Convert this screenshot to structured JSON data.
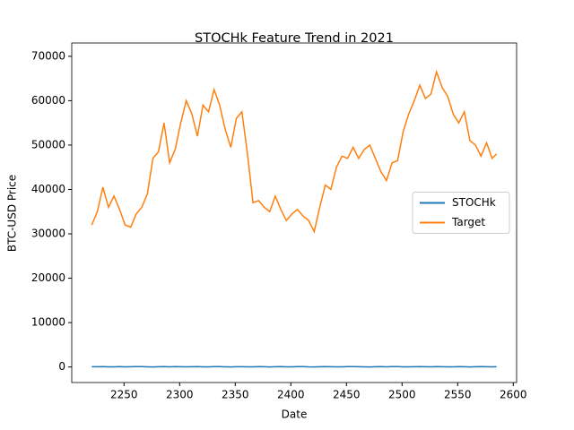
{
  "chart_data": {
    "type": "line",
    "title": "STOCHk Feature Trend in 2021",
    "x_label": "Date",
    "y_label": "BTC-USD Price",
    "x": [
      2221,
      2226,
      2231,
      2236,
      2241,
      2246,
      2251,
      2256,
      2261,
      2266,
      2271,
      2276,
      2281,
      2286,
      2291,
      2296,
      2301,
      2306,
      2311,
      2316,
      2321,
      2326,
      2331,
      2336,
      2341,
      2346,
      2351,
      2356,
      2361,
      2366,
      2371,
      2376,
      2381,
      2386,
      2391,
      2396,
      2401,
      2406,
      2411,
      2416,
      2421,
      2426,
      2431,
      2436,
      2441,
      2446,
      2451,
      2456,
      2461,
      2466,
      2471,
      2476,
      2481,
      2486,
      2491,
      2496,
      2501,
      2506,
      2511,
      2516,
      2521,
      2526,
      2531,
      2536,
      2541,
      2546,
      2551,
      2556,
      2561,
      2566,
      2571,
      2576,
      2581,
      2585
    ],
    "series": [
      {
        "name": "STOCHk",
        "color": "#1f77b4",
        "values": [
          50,
          62,
          85,
          30,
          45,
          70,
          20,
          55,
          80,
          90,
          40,
          15,
          60,
          75,
          35,
          88,
          50,
          25,
          65,
          80,
          45,
          30,
          70,
          92,
          40,
          10,
          55,
          68,
          22,
          35,
          78,
          50,
          18,
          60,
          85,
          40,
          28,
          72,
          90,
          35,
          12,
          58,
          80,
          66,
          44,
          20,
          75,
          88,
          52,
          30,
          15,
          62,
          80,
          45,
          70,
          90,
          38,
          25,
          60,
          85,
          50,
          33,
          78,
          65,
          20,
          40,
          72,
          55,
          18,
          48,
          80,
          62,
          35,
          55
        ]
      },
      {
        "name": "Target",
        "color": "#ff7f0e",
        "values": [
          32000,
          35000,
          40500,
          36000,
          38500,
          35500,
          32000,
          31500,
          34500,
          36000,
          39000,
          47000,
          48500,
          55000,
          46000,
          49000,
          55000,
          60000,
          57000,
          52000,
          59000,
          57500,
          62500,
          59000,
          53500,
          49500,
          56000,
          57500,
          48000,
          37000,
          37500,
          36000,
          35000,
          38500,
          35500,
          33000,
          34500,
          35500,
          34000,
          33000,
          30500,
          36000,
          41000,
          40000,
          45000,
          47500,
          47000,
          49500,
          47000,
          49000,
          50000,
          47000,
          44000,
          42000,
          46000,
          46500,
          53000,
          57000,
          60000,
          63500,
          60500,
          61500,
          66500,
          63000,
          61000,
          57000,
          55000,
          57500,
          51000,
          50000,
          47500,
          50500,
          47000,
          48000
        ]
      }
    ],
    "xlim": [
      2203,
      2603
    ],
    "ylim": [
      -3500,
      73000
    ],
    "xticks": [
      2250,
      2300,
      2350,
      2400,
      2450,
      2500,
      2550,
      2600
    ],
    "yticks": [
      0,
      10000,
      20000,
      30000,
      40000,
      50000,
      60000,
      70000
    ],
    "legend": "center right",
    "grid": false
  }
}
